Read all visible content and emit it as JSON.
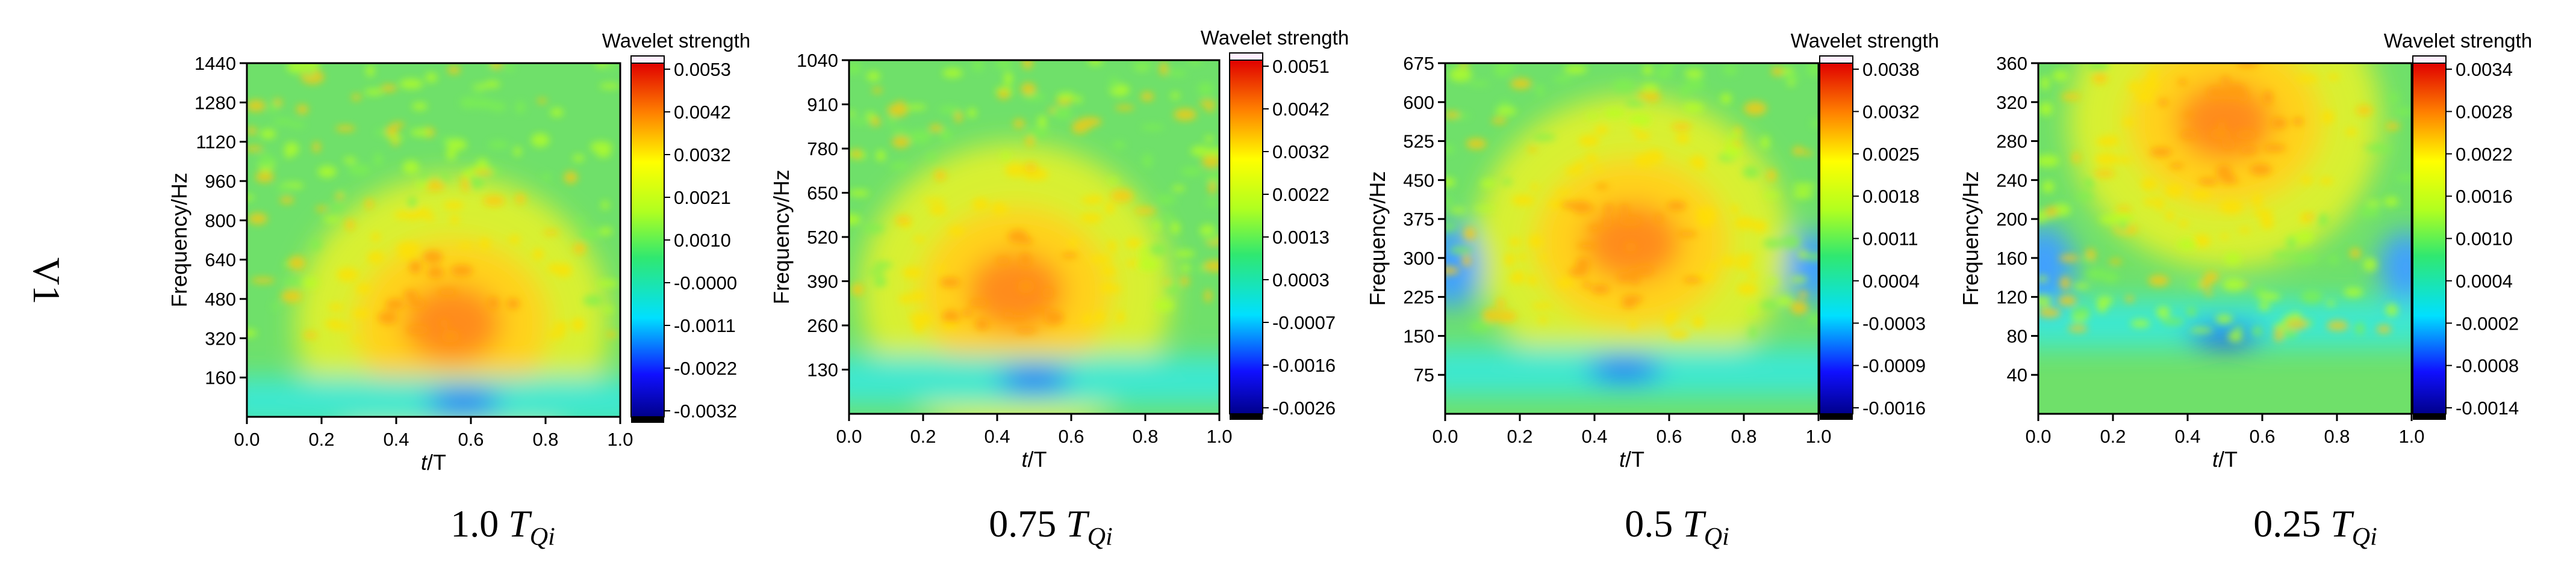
{
  "figure": {
    "row_label": "V1",
    "colorbar_title": "Wavelet strength",
    "xlabel_italic": "t",
    "xlabel_rest": "/T",
    "ylabel": "Frequency/Hz",
    "caption_sub": "Qi"
  },
  "chart_data": [
    {
      "type": "heatmap",
      "title": "1.0 TQi",
      "caption_prefix": "1.0 ",
      "caption_T": "T",
      "caption_sub": "Qi",
      "xlabel": "t/T",
      "ylabel": "Frequency/Hz",
      "xlim": [
        0,
        1.0
      ],
      "ylim": [
        0,
        1440
      ],
      "x_ticks": [
        "0.0",
        "0.2",
        "0.4",
        "0.6",
        "0.8",
        "1.0"
      ],
      "y_ticks": [
        "160",
        "320",
        "480",
        "640",
        "800",
        "960",
        "1120",
        "1280",
        "1440"
      ],
      "y_tick_values": [
        160,
        320,
        480,
        640,
        800,
        960,
        1120,
        1280,
        1440
      ],
      "colorbar_label": "Wavelet strength",
      "colorbar_ticks": [
        "0.0053",
        "0.0042",
        "0.0032",
        "0.0021",
        "0.0010",
        "-0.0000",
        "-0.0011",
        "-0.0022",
        "-0.0032"
      ],
      "colorbar_range": [
        -0.0032,
        0.0053
      ],
      "hotspot": {
        "t": 0.55,
        "freq": 380
      },
      "low_band_freq": 90,
      "cold_spot": {
        "t": 0.58,
        "freq": 60
      }
    },
    {
      "type": "heatmap",
      "title": "0.75 TQi",
      "caption_prefix": "0.75 ",
      "caption_T": "T",
      "caption_sub": "Qi",
      "xlabel": "t/T",
      "ylabel": "Frequency/Hz",
      "xlim": [
        0,
        1.0
      ],
      "ylim": [
        0,
        1040
      ],
      "x_ticks": [
        "0.0",
        "0.2",
        "0.4",
        "0.6",
        "0.8",
        "1.0"
      ],
      "y_ticks": [
        "130",
        "260",
        "390",
        "520",
        "650",
        "780",
        "910",
        "1040"
      ],
      "y_tick_values": [
        130,
        260,
        390,
        520,
        650,
        780,
        910,
        1040
      ],
      "colorbar_label": "Wavelet strength",
      "colorbar_ticks": [
        "0.0051",
        "0.0042",
        "0.0032",
        "0.0022",
        "0.0013",
        "0.0003",
        "-0.0007",
        "-0.0016",
        "-0.0026"
      ],
      "colorbar_range": [
        -0.0026,
        0.0051
      ],
      "hotspot": {
        "t": 0.45,
        "freq": 360
      },
      "low_band_freq": 120,
      "cold_spot": {
        "t": 0.5,
        "freq": 100
      }
    },
    {
      "type": "heatmap",
      "title": "0.5 TQi",
      "caption_prefix": "0.5 ",
      "caption_T": "T",
      "caption_sub": "Qi",
      "xlabel": "t/T",
      "ylabel": "Frequency/Hz",
      "xlim": [
        0,
        1.0
      ],
      "ylim": [
        0,
        675
      ],
      "x_ticks": [
        "0.0",
        "0.2",
        "0.4",
        "0.6",
        "0.8",
        "1.0"
      ],
      "y_ticks": [
        "75",
        "150",
        "225",
        "300",
        "375",
        "450",
        "525",
        "600",
        "675"
      ],
      "y_tick_values": [
        75,
        150,
        225,
        300,
        375,
        450,
        525,
        600,
        675
      ],
      "colorbar_label": "Wavelet strength",
      "colorbar_ticks": [
        "0.0038",
        "0.0032",
        "0.0025",
        "0.0018",
        "0.0011",
        "0.0004",
        "-0.0003",
        "-0.0009",
        "-0.0016"
      ],
      "colorbar_range": [
        -0.0016,
        0.0038
      ],
      "hotspot": {
        "t": 0.5,
        "freq": 330
      },
      "low_band_freq": 95,
      "cold_spot": {
        "t": 0.48,
        "freq": 85
      }
    },
    {
      "type": "heatmap",
      "title": "0.25 TQi",
      "caption_prefix": "0.25 ",
      "caption_T": "T",
      "caption_sub": "Qi",
      "xlabel": "t/T",
      "ylabel": "Frequency/Hz",
      "xlim": [
        0,
        1.0
      ],
      "ylim": [
        0,
        360
      ],
      "x_ticks": [
        "0.0",
        "0.2",
        "0.4",
        "0.6",
        "0.8",
        "1.0"
      ],
      "y_ticks": [
        "40",
        "80",
        "120",
        "160",
        "200",
        "240",
        "280",
        "320",
        "360"
      ],
      "y_tick_values": [
        40,
        80,
        120,
        160,
        200,
        240,
        280,
        320,
        360
      ],
      "colorbar_label": "Wavelet strength",
      "colorbar_ticks": [
        "0.0034",
        "0.0028",
        "0.0022",
        "0.0016",
        "0.0010",
        "0.0004",
        "-0.0002",
        "-0.0008",
        "-0.0014"
      ],
      "colorbar_range": [
        -0.0014,
        0.0034
      ],
      "hotspot": {
        "t": 0.5,
        "freq": 300
      },
      "low_band_freq": 100,
      "cold_spot": {
        "t": 0.5,
        "freq": 80
      }
    }
  ]
}
